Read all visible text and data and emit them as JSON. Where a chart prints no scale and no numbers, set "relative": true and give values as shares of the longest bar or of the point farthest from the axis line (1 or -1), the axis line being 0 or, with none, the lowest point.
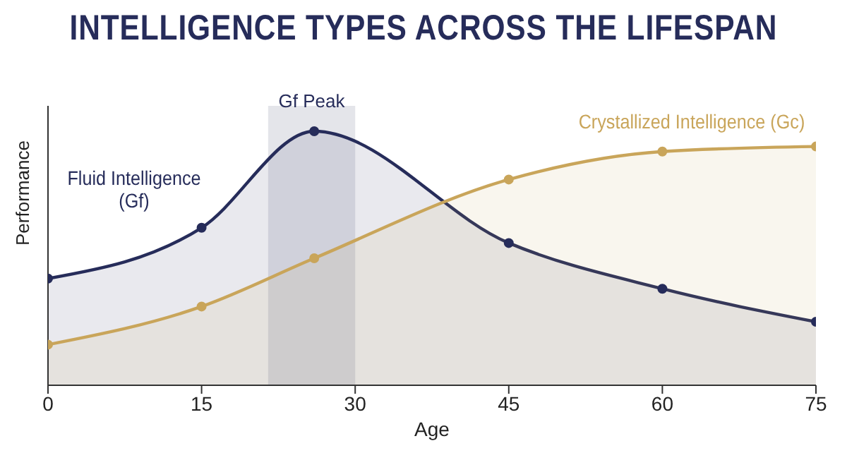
{
  "chart_data": {
    "type": "area",
    "title": "INTELLIGENCE TYPES ACROSS THE LIFESPAN",
    "xlabel": "Age",
    "ylabel": "Performance",
    "x": [
      0,
      15,
      26,
      45,
      60,
      75
    ],
    "xlim": [
      0,
      75
    ],
    "xticks": [
      0,
      15,
      30,
      45,
      60,
      75
    ],
    "relative": true,
    "grid": false,
    "legend": false,
    "marker": "circle",
    "line_style": "solid",
    "series": [
      {
        "name": "Fluid Intelligence (Gf)",
        "color": "#262c5a",
        "values": [
          0.42,
          0.62,
          1,
          0.56,
          0.38,
          0.25
        ]
      },
      {
        "name": "Crystallized Intelligence (Gc)",
        "color": "#c9a55a",
        "values": [
          0.16,
          0.31,
          0.5,
          0.81,
          0.92,
          0.94
        ]
      }
    ],
    "bands": [
      {
        "axis": "x",
        "from": 21.5,
        "to": 30,
        "label": "Gf Peak",
        "color": "#d2d4dc"
      }
    ]
  }
}
